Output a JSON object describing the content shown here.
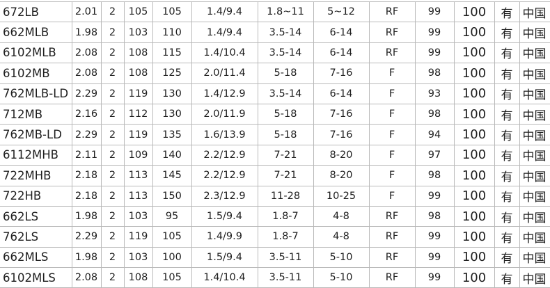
{
  "table": {
    "rows": [
      [
        "672LB",
        "2.01",
        "2",
        "105",
        "105",
        "1.4/9.4",
        "1.8~11",
        "5~12",
        "RF",
        "99",
        "100",
        "有",
        "中国"
      ],
      [
        "662MLB",
        "1.98",
        "2",
        "103",
        "110",
        "1.4/9.4",
        "3.5-14",
        "6-14",
        "RF",
        "99",
        "100",
        "有",
        "中国"
      ],
      [
        "6102MLB",
        "2.08",
        "2",
        "108",
        "115",
        "1.4/10.4",
        "3.5-14",
        "6-14",
        "RF",
        "99",
        "100",
        "有",
        "中国"
      ],
      [
        "6102MB",
        "2.08",
        "2",
        "108",
        "125",
        "2.0/11.4",
        "5-18",
        "7-16",
        "F",
        "98",
        "100",
        "有",
        "中国"
      ],
      [
        "762MLB-LD",
        "2.29",
        "2",
        "119",
        "130",
        "1.4/12.9",
        "3.5-14",
        "6-14",
        "F",
        "93",
        "100",
        "有",
        "中国"
      ],
      [
        "712MB",
        "2.16",
        "2",
        "112",
        "130",
        "2.0/11.9",
        "5-18",
        "7-16",
        "F",
        "98",
        "100",
        "有",
        "中国"
      ],
      [
        "762MB-LD",
        "2.29",
        "2",
        "119",
        "135",
        "1.6/13.9",
        "5-18",
        "7-16",
        "F",
        "94",
        "100",
        "有",
        "中国"
      ],
      [
        "6112MHB",
        "2.11",
        "2",
        "109",
        "140",
        "2.2/12.9",
        "7-21",
        "8-20",
        "F",
        "97",
        "100",
        "有",
        "中国"
      ],
      [
        "722MHB",
        "2.18",
        "2",
        "113",
        "145",
        "2.2/12.9",
        "7-21",
        "8-20",
        "F",
        "98",
        "100",
        "有",
        "中国"
      ],
      [
        "722HB",
        "2.18",
        "2",
        "113",
        "150",
        "2.3/12.9",
        "11-28",
        "10-25",
        "F",
        "99",
        "100",
        "有",
        "中国"
      ],
      [
        "662LS",
        "1.98",
        "2",
        "103",
        "95",
        "1.5/9.4",
        "1.8-7",
        "4-8",
        "RF",
        "98",
        "100",
        "有",
        "中国"
      ],
      [
        "762LS",
        "2.29",
        "2",
        "119",
        "105",
        "1.4/9.9",
        "1.8-7",
        "4-8",
        "RF",
        "99",
        "100",
        "有",
        "中国"
      ],
      [
        "662MLS",
        "1.98",
        "2",
        "103",
        "100",
        "1.5/9.4",
        "3.5-11",
        "5-10",
        "RF",
        "99",
        "100",
        "有",
        "中国"
      ],
      [
        "6102MLS",
        "2.08",
        "2",
        "108",
        "105",
        "1.4/10.4",
        "3.5-11",
        "5-10",
        "RF",
        "99",
        "100",
        "有",
        "中国"
      ]
    ]
  }
}
